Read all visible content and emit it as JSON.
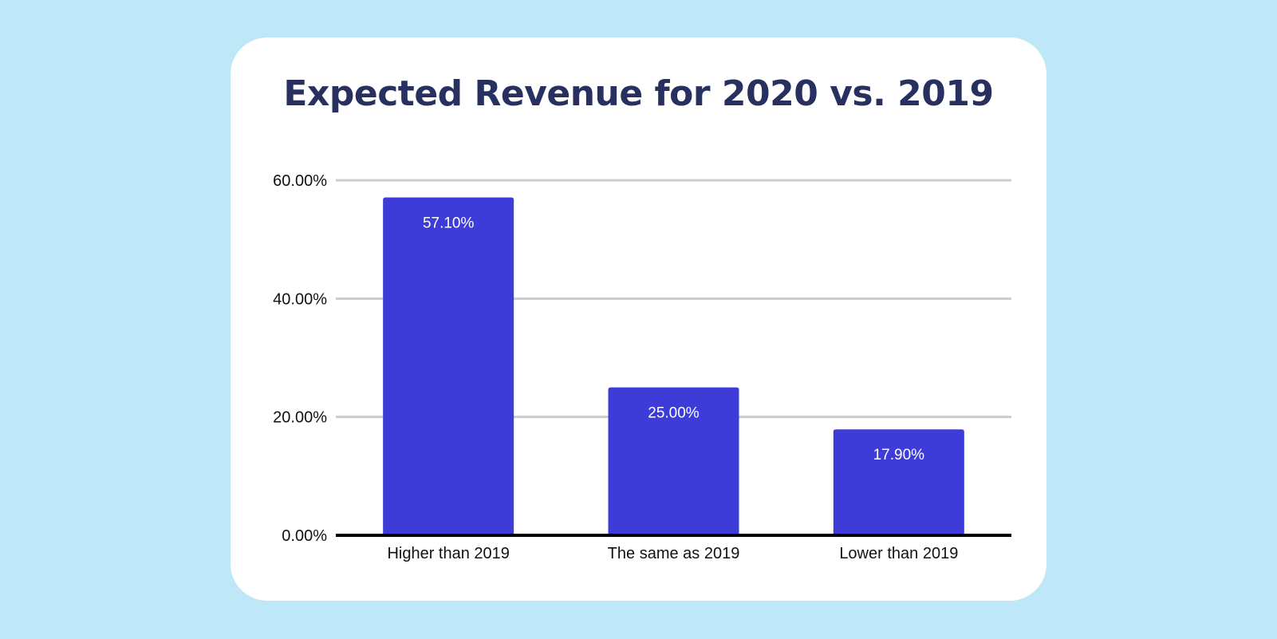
{
  "chart_data": {
    "type": "bar",
    "title": "Expected Revenue for 2020 vs. 2019",
    "categories": [
      "Higher than 2019",
      "The same as 2019",
      "Lower than 2019"
    ],
    "values": [
      57.1,
      25.0,
      17.9
    ],
    "data_labels": [
      "57.10%",
      "25.00%",
      "17.90%"
    ],
    "xlabel": "",
    "ylabel": "",
    "ylim": [
      0,
      60
    ],
    "yticks": [
      0,
      20,
      40,
      60
    ],
    "ytick_labels": [
      "0.00%",
      "20.00%",
      "40.00%",
      "60.00%"
    ],
    "grid": true,
    "legend": "none",
    "colors": {
      "bar": "#3e3cd8",
      "grid": "#cccccc",
      "axis": "#000000",
      "title": "#27305f",
      "background": "#bee8f7",
      "card": "#ffffff"
    }
  }
}
